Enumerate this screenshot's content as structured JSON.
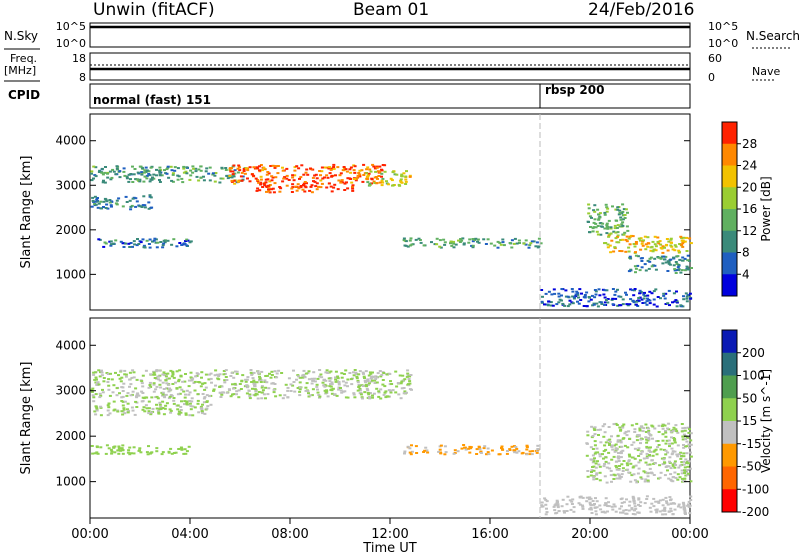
{
  "header": {
    "title": "Unwin (fitACF)",
    "beam": "Beam 01",
    "date": "24/Feb/2016"
  },
  "small_panels": {
    "nsky": {
      "left_label": "N.Sky",
      "left_ticks": [
        "10^5",
        "10^0"
      ],
      "right_ticks": [
        "10^5",
        "10^0"
      ],
      "right_label": "N.Search"
    },
    "freq": {
      "left_label_1": "Freq.",
      "left_label_2": "[MHz]",
      "left_ticks": [
        "18",
        "8"
      ],
      "right_ticks": [
        "60",
        "0"
      ],
      "right_label": "Nave"
    },
    "cpid": {
      "label": "CPID",
      "modes": [
        {
          "text": "normal (fast) 151",
          "start_hour": 0
        },
        {
          "text": "rbsp 200",
          "start_hour": 18
        }
      ]
    }
  },
  "chart_data": [
    {
      "type": "heatmap",
      "name": "power",
      "ylabel": "Slant Range [km]",
      "yticks": [
        1000,
        2000,
        3000,
        4000
      ],
      "ylim": [
        200,
        4600
      ],
      "xlim": [
        0,
        24
      ],
      "colorbar": {
        "label": "Power [dB]",
        "ticks": [
          4,
          8,
          12,
          16,
          20,
          24,
          28
        ],
        "range": [
          0,
          32
        ],
        "colors": [
          "#0000dd",
          "#1f5fc0",
          "#3a8a7a",
          "#60b060",
          "#9acd32",
          "#f2c200",
          "#ff8800",
          "#ff2200"
        ]
      },
      "regions": [
        {
          "x": [
            0.0,
            6.2
          ],
          "y": [
            3080,
            3450
          ],
          "v": 12
        },
        {
          "x": [
            5.5,
            11.8
          ],
          "y": [
            3050,
            3480
          ],
          "v": 28
        },
        {
          "x": [
            6.5,
            10.5
          ],
          "y": [
            2860,
            3050
          ],
          "v": 30
        },
        {
          "x": [
            11.0,
            12.8
          ],
          "y": [
            3000,
            3350
          ],
          "v": 20
        },
        {
          "x": [
            0.0,
            2.5
          ],
          "y": [
            2480,
            2800
          ],
          "v": 9
        },
        {
          "x": [
            12.5,
            18.0
          ],
          "y": [
            1620,
            1830
          ],
          "v": 12
        },
        {
          "x": [
            0.0,
            4.0
          ],
          "y": [
            1620,
            1830
          ],
          "v": 8
        },
        {
          "x": [
            20.5,
            24.0
          ],
          "y": [
            1500,
            1900
          ],
          "v": 22
        },
        {
          "x": [
            19.8,
            21.5
          ],
          "y": [
            1900,
            2600
          ],
          "v": 14
        },
        {
          "x": [
            21.5,
            24.0
          ],
          "y": [
            1050,
            1450
          ],
          "v": 10
        },
        {
          "x": [
            18.0,
            24.0
          ],
          "y": [
            300,
            700
          ],
          "v": 6
        }
      ]
    },
    {
      "type": "heatmap",
      "name": "velocity",
      "ylabel": "Slant Range [km]",
      "yticks": [
        1000,
        2000,
        3000,
        4000
      ],
      "ylim": [
        200,
        4600
      ],
      "xlim": [
        0,
        24
      ],
      "colorbar": {
        "label": "Velocity [m s^-1]",
        "ticks": [
          200,
          100,
          50,
          15,
          -15,
          -50,
          -100,
          -200
        ],
        "range": [
          -250,
          250
        ],
        "colors": [
          "#0a1ab4",
          "#2a6f7a",
          "#4f9e4f",
          "#8fd14f",
          "#c0c0c0",
          "#ff9900",
          "#ff6600",
          "#ff0000"
        ]
      },
      "regions": [
        {
          "x": [
            0.0,
            12.8
          ],
          "y": [
            2850,
            3480
          ],
          "v": 0
        },
        {
          "x": [
            0.0,
            5.0
          ],
          "y": [
            2480,
            2800
          ],
          "v": 0
        },
        {
          "x": [
            12.5,
            18.0
          ],
          "y": [
            1620,
            1830
          ],
          "v": -70
        },
        {
          "x": [
            0.0,
            4.0
          ],
          "y": [
            1620,
            1830
          ],
          "v": 30
        },
        {
          "x": [
            19.8,
            24.0
          ],
          "y": [
            1000,
            2300
          ],
          "v": 0
        },
        {
          "x": [
            18.0,
            24.0
          ],
          "y": [
            300,
            700
          ],
          "v": -30
        }
      ]
    }
  ],
  "x_axis": {
    "ticks": [
      "00:00",
      "04:00",
      "08:00",
      "12:00",
      "16:00",
      "20:00",
      "00:00"
    ],
    "label": "Time UT"
  }
}
